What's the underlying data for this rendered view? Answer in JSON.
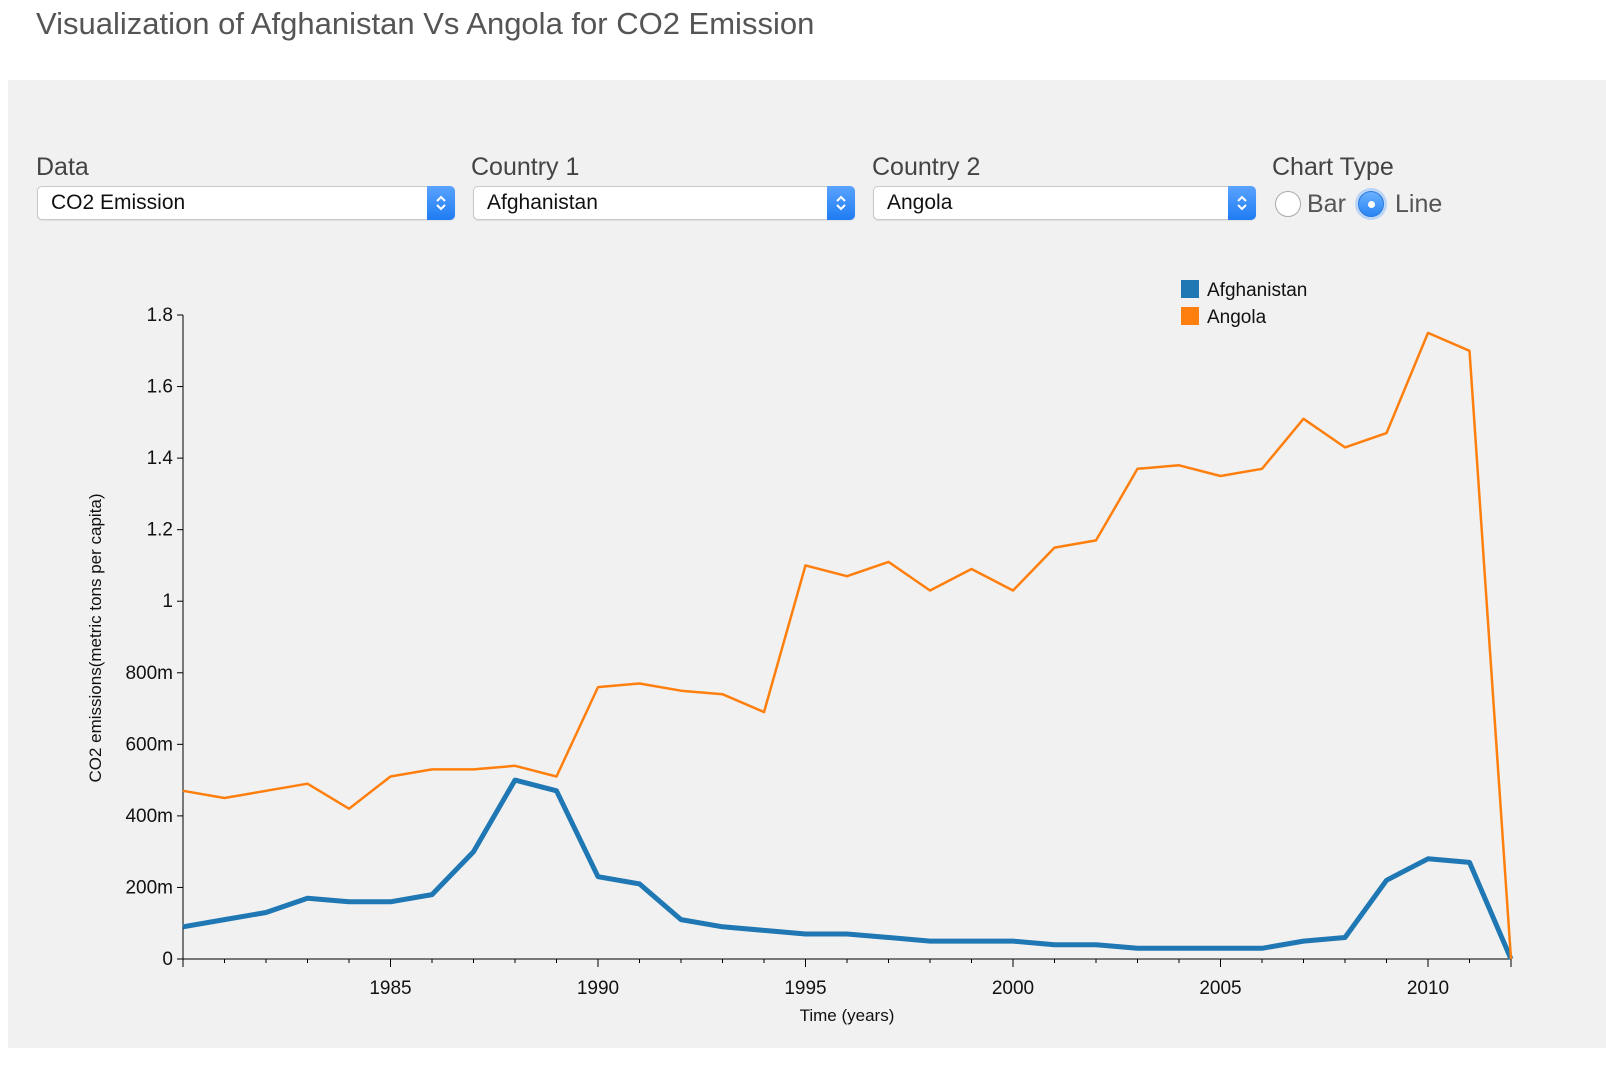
{
  "page": {
    "title": "Visualization of Afghanistan Vs Angola for CO2 Emission"
  },
  "controls": {
    "data": {
      "label": "Data",
      "value": "CO2 Emission"
    },
    "country1": {
      "label": "Country 1",
      "value": "Afghanistan"
    },
    "country2": {
      "label": "Country 2",
      "value": "Angola"
    },
    "chart_type": {
      "label": "Chart Type",
      "options": [
        "Bar",
        "Line"
      ],
      "selected": "Line"
    }
  },
  "colors": {
    "afghanistan": "#1f77b4",
    "angola": "#ff7f0e",
    "panel": "#f1f1f1",
    "accent": "#2a85f5"
  },
  "chart_data": {
    "type": "line",
    "xlabel": "Time (years)",
    "ylabel": "CO2 emissions(metric tons per capita)",
    "xlim": [
      1980,
      2012
    ],
    "ylim": [
      0,
      1.8
    ],
    "x_ticks": [
      1985,
      1990,
      1995,
      2000,
      2005,
      2010
    ],
    "y_ticks": [
      {
        "value": 0,
        "label": "0"
      },
      {
        "value": 0.2,
        "label": "200m"
      },
      {
        "value": 0.4,
        "label": "400m"
      },
      {
        "value": 0.6,
        "label": "600m"
      },
      {
        "value": 0.8,
        "label": "800m"
      },
      {
        "value": 1.0,
        "label": "1"
      },
      {
        "value": 1.2,
        "label": "1.2"
      },
      {
        "value": 1.4,
        "label": "1.4"
      },
      {
        "value": 1.6,
        "label": "1.6"
      },
      {
        "value": 1.8,
        "label": "1.8"
      }
    ],
    "legend_position": "top-right",
    "x": [
      1980,
      1981,
      1982,
      1983,
      1984,
      1985,
      1986,
      1987,
      1988,
      1989,
      1990,
      1991,
      1992,
      1993,
      1994,
      1995,
      1996,
      1997,
      1998,
      1999,
      2000,
      2001,
      2002,
      2003,
      2004,
      2005,
      2006,
      2007,
      2008,
      2009,
      2010,
      2011,
      2012
    ],
    "series": [
      {
        "name": "Afghanistan",
        "color": "#1f77b4",
        "stroke": "thick",
        "values": [
          0.09,
          0.11,
          0.13,
          0.17,
          0.16,
          0.16,
          0.18,
          0.3,
          0.5,
          0.47,
          0.23,
          0.21,
          0.11,
          0.09,
          0.08,
          0.07,
          0.07,
          0.06,
          0.05,
          0.05,
          0.05,
          0.04,
          0.04,
          0.03,
          0.03,
          0.03,
          0.03,
          0.05,
          0.06,
          0.22,
          0.28,
          0.27,
          0.0
        ]
      },
      {
        "name": "Angola",
        "color": "#ff7f0e",
        "stroke": "thin",
        "values": [
          0.47,
          0.45,
          0.47,
          0.49,
          0.42,
          0.51,
          0.53,
          0.53,
          0.54,
          0.51,
          0.76,
          0.77,
          0.75,
          0.74,
          0.69,
          1.1,
          1.07,
          1.11,
          1.03,
          1.09,
          1.03,
          1.15,
          1.17,
          1.37,
          1.38,
          1.35,
          1.37,
          1.51,
          1.43,
          1.47,
          1.75,
          1.7,
          0.0
        ]
      }
    ]
  }
}
